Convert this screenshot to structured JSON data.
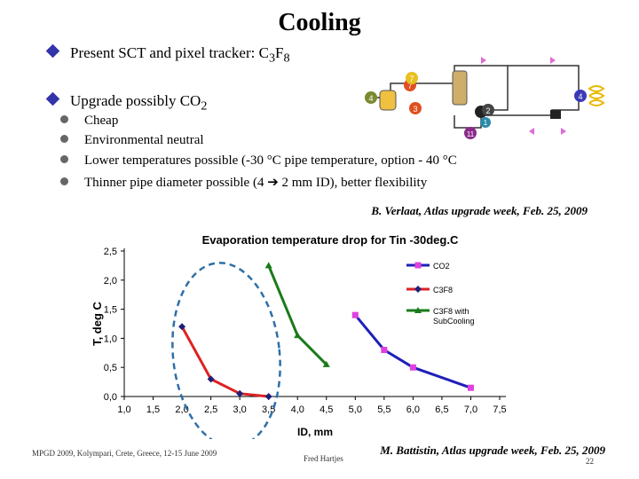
{
  "slide": {
    "title": "Cooling",
    "bullets": [
      {
        "pre": "Present SCT and pixel tracker: C",
        "sub1": "3",
        "mid": "F",
        "sub2": "8"
      },
      {
        "pre": "Upgrade possibly CO",
        "sub1": "2"
      }
    ],
    "sub_items": [
      "Cheap",
      "Environmental neutral",
      "Lower temperatures possible (-30 °C pipe temperature, option - 40 °C",
      "Thinner pipe diameter possible (4 ➔ 2 mm ID), better flexibility"
    ],
    "credit_top": "B. Verlaat,  Atlas upgrade week, Feb. 25, 2009",
    "credit_bottom": "M. Battistin, Atlas upgrade week, Feb. 25, 2009",
    "footer_left": "MPGD 2009, Kolympari, Crete, Greece, 12-15 June 2009",
    "footer_center": "Fred Hartjes",
    "page_number": "22",
    "diagram_labels": [
      "7",
      "4",
      "7",
      "3",
      "2",
      "4",
      "11",
      "1"
    ],
    "colors": {
      "bullet": "#3333aa",
      "co2": "#1f1fb8",
      "c3f8": "#dd2222",
      "c3f8_sub": "#1a7a1a",
      "dashed": "#2e6fa8"
    }
  },
  "chart_data": {
    "type": "line",
    "title": "Evaporation temperature drop for Tin -30deg.C",
    "xlabel": "ID, mm",
    "ylabel": "T, deg C",
    "xlim": [
      1.0,
      7.5
    ],
    "ylim": [
      0.0,
      2.5
    ],
    "x_ticks": [
      "1,0",
      "1,5",
      "2,0",
      "2,5",
      "3,0",
      "3,5",
      "4,0",
      "4,5",
      "5,0",
      "5,5",
      "6,0",
      "6,5",
      "7,0",
      "7,5"
    ],
    "y_ticks": [
      "0,0",
      "0,5",
      "1,0",
      "1,5",
      "2,0",
      "2,5"
    ],
    "legend_position": "right",
    "series": [
      {
        "name": "CO2",
        "color": "#1f1fb8",
        "marker": "square",
        "points": [
          [
            5.0,
            1.4
          ],
          [
            5.5,
            0.8
          ],
          [
            6.0,
            0.5
          ],
          [
            7.0,
            0.15
          ]
        ]
      },
      {
        "name": "C3F8",
        "color": "#dd2222",
        "marker": "diamond",
        "points": [
          [
            2.0,
            1.2
          ],
          [
            2.5,
            0.3
          ],
          [
            3.0,
            0.05
          ],
          [
            3.5,
            0.0
          ]
        ]
      },
      {
        "name": "C3F8 with SubCooling",
        "color": "#1a7a1a",
        "marker": "triangle",
        "points": [
          [
            3.5,
            2.25
          ],
          [
            4.0,
            1.05
          ],
          [
            4.5,
            0.55
          ]
        ]
      }
    ]
  }
}
